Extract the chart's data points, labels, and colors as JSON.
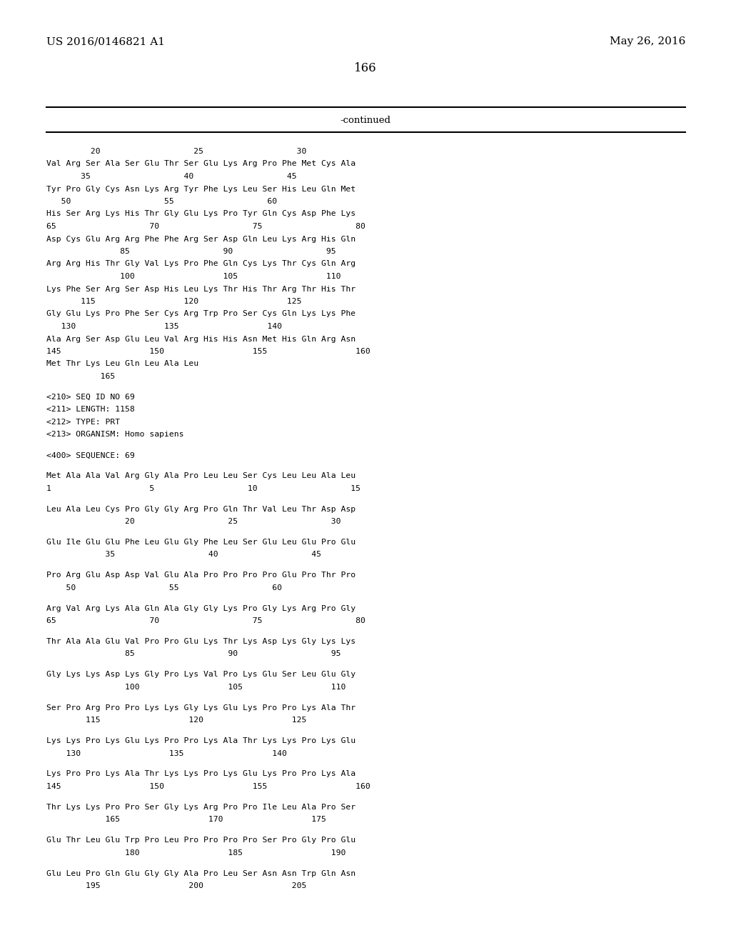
{
  "header_left": "US 2016/0146821 A1",
  "header_right": "May 26, 2016",
  "page_number": "166",
  "continued_label": "-continued",
  "background_color": "#ffffff",
  "text_color": "#000000",
  "content_lines": [
    "         20                   25                   30",
    "Val Arg Ser Ala Ser Glu Thr Ser Glu Lys Arg Pro Phe Met Cys Ala",
    "       35                   40                   45",
    "Tyr Pro Gly Cys Asn Lys Arg Tyr Phe Lys Leu Ser His Leu Gln Met",
    "   50                   55                   60",
    "His Ser Arg Lys His Thr Gly Glu Lys Pro Tyr Gln Cys Asp Phe Lys",
    "65                   70                   75                   80",
    "Asp Cys Glu Arg Arg Phe Phe Arg Ser Asp Gln Leu Lys Arg His Gln",
    "               85                   90                   95",
    "Arg Arg His Thr Gly Val Lys Pro Phe Gln Cys Lys Thr Cys Gln Arg",
    "               100                  105                  110",
    "Lys Phe Ser Arg Ser Asp His Leu Lys Thr His Thr Arg Thr His Thr",
    "       115                  120                  125",
    "Gly Glu Lys Pro Phe Ser Cys Arg Trp Pro Ser Cys Gln Lys Lys Phe",
    "   130                  135                  140",
    "Ala Arg Ser Asp Glu Leu Val Arg His His Asn Met His Gln Arg Asn",
    "145                  150                  155                  160",
    "Met Thr Lys Leu Gln Leu Ala Leu",
    "           165",
    "",
    "<210> SEQ ID NO 69",
    "<211> LENGTH: 1158",
    "<212> TYPE: PRT",
    "<213> ORGANISM: Homo sapiens",
    "",
    "<400> SEQUENCE: 69",
    "",
    "Met Ala Ala Val Arg Gly Ala Pro Leu Leu Ser Cys Leu Leu Ala Leu",
    "1                    5                   10                   15",
    "",
    "Leu Ala Leu Cys Pro Gly Gly Arg Pro Gln Thr Val Leu Thr Asp Asp",
    "                20                   25                   30",
    "",
    "Glu Ile Glu Glu Phe Leu Glu Gly Phe Leu Ser Glu Leu Glu Pro Glu",
    "            35                   40                   45",
    "",
    "Pro Arg Glu Asp Asp Val Glu Ala Pro Pro Pro Pro Glu Pro Thr Pro",
    "    50                   55                   60",
    "",
    "Arg Val Arg Lys Ala Gln Ala Gly Gly Lys Pro Gly Lys Arg Pro Gly",
    "65                   70                   75                   80",
    "",
    "Thr Ala Ala Glu Val Pro Pro Glu Lys Thr Lys Asp Lys Gly Lys Lys",
    "                85                   90                   95",
    "",
    "Gly Lys Lys Asp Lys Gly Pro Lys Val Pro Lys Glu Ser Leu Glu Gly",
    "                100                  105                  110",
    "",
    "Ser Pro Arg Pro Pro Lys Lys Gly Lys Glu Lys Pro Pro Lys Ala Thr",
    "        115                  120                  125",
    "",
    "Lys Lys Pro Lys Glu Lys Pro Pro Lys Ala Thr Lys Lys Pro Lys Glu",
    "    130                  135                  140",
    "",
    "Lys Pro Pro Lys Ala Thr Lys Lys Pro Lys Glu Lys Pro Pro Lys Ala",
    "145                  150                  155                  160",
    "",
    "Thr Lys Lys Pro Pro Ser Gly Lys Arg Pro Pro Ile Leu Ala Pro Ser",
    "            165                  170                  175",
    "",
    "Glu Thr Leu Glu Trp Pro Leu Pro Pro Pro Pro Ser Pro Gly Pro Glu",
    "                180                  185                  190",
    "",
    "Glu Leu Pro Gln Glu Gly Gly Ala Pro Leu Ser Asn Asn Trp Gln Asn",
    "        195                  200                  205"
  ]
}
